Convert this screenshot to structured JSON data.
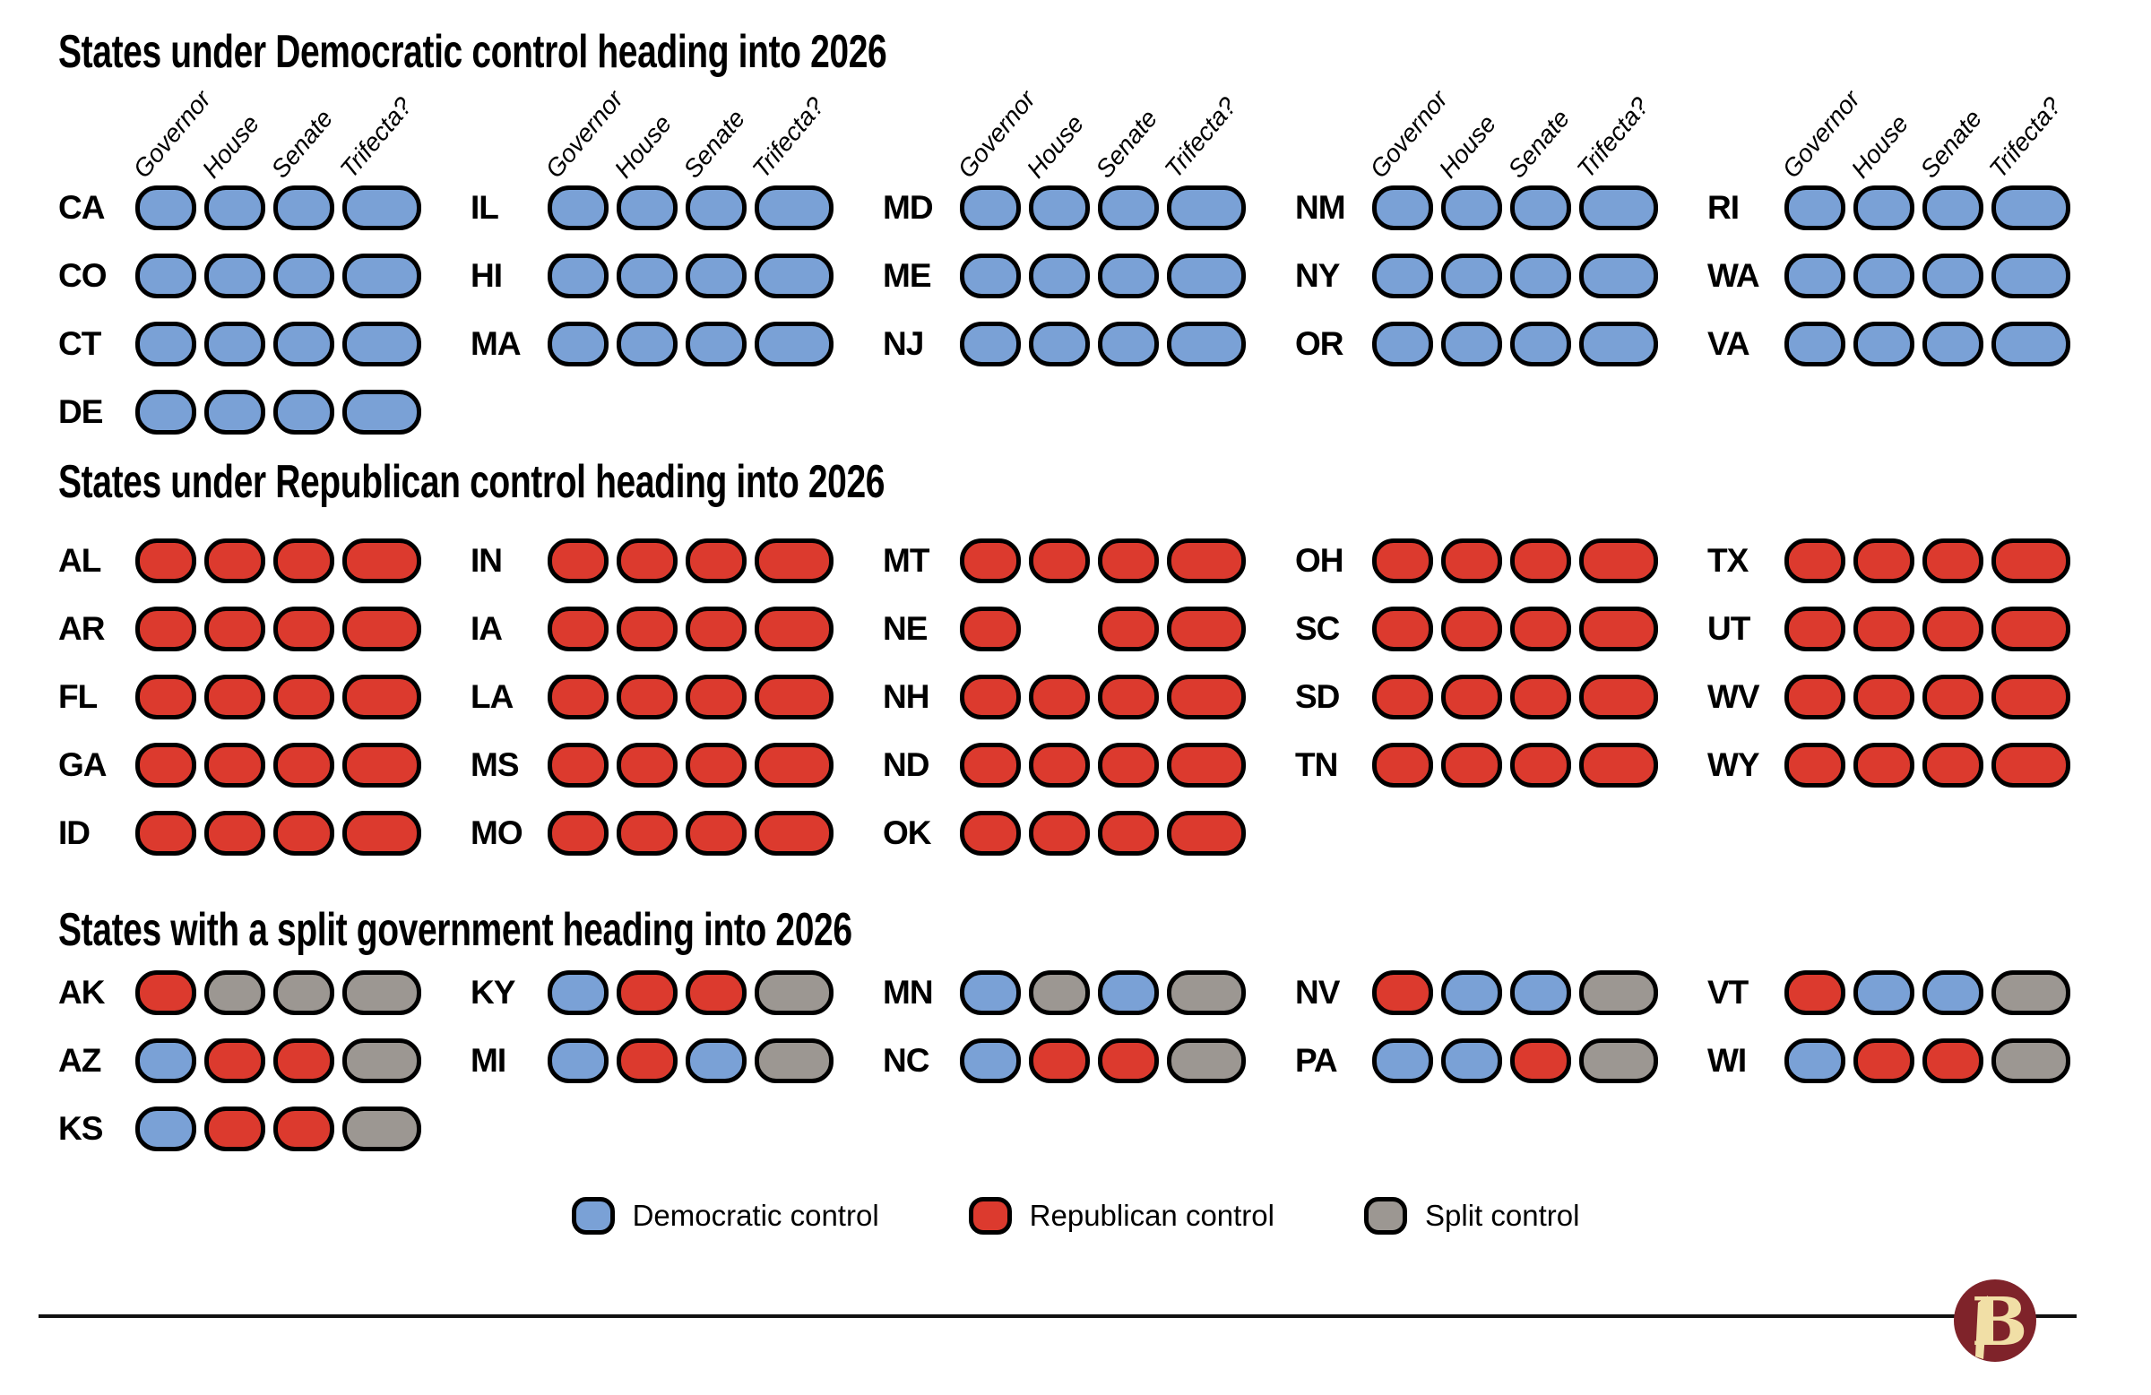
{
  "colors": {
    "dem": "#7AA1D6",
    "rep": "#DC3A2E",
    "split": "#9C9792",
    "outline": "#000000",
    "maroon": "#7F232A",
    "cream": "#F1DFA6"
  },
  "chart_data": {
    "type": "table",
    "column_headers": [
      "Governor",
      "House",
      "Senate",
      "Trifecta?"
    ],
    "sections": [
      {
        "title": "States under Democratic control heading into 2026",
        "show_column_headers": true,
        "columns": [
          [
            {
              "state": "CA",
              "control": [
                "D",
                "D",
                "D",
                "D"
              ]
            },
            {
              "state": "CO",
              "control": [
                "D",
                "D",
                "D",
                "D"
              ]
            },
            {
              "state": "CT",
              "control": [
                "D",
                "D",
                "D",
                "D"
              ]
            },
            {
              "state": "DE",
              "control": [
                "D",
                "D",
                "D",
                "D"
              ]
            }
          ],
          [
            {
              "state": "IL",
              "control": [
                "D",
                "D",
                "D",
                "D"
              ]
            },
            {
              "state": "HI",
              "control": [
                "D",
                "D",
                "D",
                "D"
              ]
            },
            {
              "state": "MA",
              "control": [
                "D",
                "D",
                "D",
                "D"
              ]
            }
          ],
          [
            {
              "state": "MD",
              "control": [
                "D",
                "D",
                "D",
                "D"
              ]
            },
            {
              "state": "ME",
              "control": [
                "D",
                "D",
                "D",
                "D"
              ]
            },
            {
              "state": "NJ",
              "control": [
                "D",
                "D",
                "D",
                "D"
              ]
            }
          ],
          [
            {
              "state": "NM",
              "control": [
                "D",
                "D",
                "D",
                "D"
              ]
            },
            {
              "state": "NY",
              "control": [
                "D",
                "D",
                "D",
                "D"
              ]
            },
            {
              "state": "OR",
              "control": [
                "D",
                "D",
                "D",
                "D"
              ]
            }
          ],
          [
            {
              "state": "RI",
              "control": [
                "D",
                "D",
                "D",
                "D"
              ]
            },
            {
              "state": "WA",
              "control": [
                "D",
                "D",
                "D",
                "D"
              ]
            },
            {
              "state": "VA",
              "control": [
                "D",
                "D",
                "D",
                "D"
              ]
            }
          ]
        ]
      },
      {
        "title": "States under Republican control heading into 2026",
        "show_column_headers": false,
        "columns": [
          [
            {
              "state": "AL",
              "control": [
                "R",
                "R",
                "R",
                "R"
              ]
            },
            {
              "state": "AR",
              "control": [
                "R",
                "R",
                "R",
                "R"
              ]
            },
            {
              "state": "FL",
              "control": [
                "R",
                "R",
                "R",
                "R"
              ]
            },
            {
              "state": "GA",
              "control": [
                "R",
                "R",
                "R",
                "R"
              ]
            },
            {
              "state": "ID",
              "control": [
                "R",
                "R",
                "R",
                "R"
              ]
            }
          ],
          [
            {
              "state": "IN",
              "control": [
                "R",
                "R",
                "R",
                "R"
              ]
            },
            {
              "state": "IA",
              "control": [
                "R",
                "R",
                "R",
                "R"
              ]
            },
            {
              "state": "LA",
              "control": [
                "R",
                "R",
                "R",
                "R"
              ]
            },
            {
              "state": "MS",
              "control": [
                "R",
                "R",
                "R",
                "R"
              ]
            },
            {
              "state": "MO",
              "control": [
                "R",
                "R",
                "R",
                "R"
              ]
            }
          ],
          [
            {
              "state": "MT",
              "control": [
                "R",
                "R",
                "R",
                "R"
              ]
            },
            {
              "state": "NE",
              "control": [
                "R",
                null,
                "R",
                "R"
              ]
            },
            {
              "state": "NH",
              "control": [
                "R",
                "R",
                "R",
                "R"
              ]
            },
            {
              "state": "ND",
              "control": [
                "R",
                "R",
                "R",
                "R"
              ]
            },
            {
              "state": "OK",
              "control": [
                "R",
                "R",
                "R",
                "R"
              ]
            }
          ],
          [
            {
              "state": "OH",
              "control": [
                "R",
                "R",
                "R",
                "R"
              ]
            },
            {
              "state": "SC",
              "control": [
                "R",
                "R",
                "R",
                "R"
              ]
            },
            {
              "state": "SD",
              "control": [
                "R",
                "R",
                "R",
                "R"
              ]
            },
            {
              "state": "TN",
              "control": [
                "R",
                "R",
                "R",
                "R"
              ]
            }
          ],
          [
            {
              "state": "TX",
              "control": [
                "R",
                "R",
                "R",
                "R"
              ]
            },
            {
              "state": "UT",
              "control": [
                "R",
                "R",
                "R",
                "R"
              ]
            },
            {
              "state": "WV",
              "control": [
                "R",
                "R",
                "R",
                "R"
              ]
            },
            {
              "state": "WY",
              "control": [
                "R",
                "R",
                "R",
                "R"
              ]
            }
          ]
        ]
      },
      {
        "title": "States with a split government heading into 2026",
        "show_column_headers": false,
        "columns": [
          [
            {
              "state": "AK",
              "control": [
                "R",
                "S",
                "S",
                "S"
              ]
            },
            {
              "state": "AZ",
              "control": [
                "D",
                "R",
                "R",
                "S"
              ]
            },
            {
              "state": "KS",
              "control": [
                "D",
                "R",
                "R",
                "S"
              ]
            }
          ],
          [
            {
              "state": "KY",
              "control": [
                "D",
                "R",
                "R",
                "S"
              ]
            },
            {
              "state": "MI",
              "control": [
                "D",
                "R",
                "D",
                "S"
              ]
            }
          ],
          [
            {
              "state": "MN",
              "control": [
                "D",
                "S",
                "D",
                "S"
              ]
            },
            {
              "state": "NC",
              "control": [
                "D",
                "R",
                "R",
                "S"
              ]
            }
          ],
          [
            {
              "state": "NV",
              "control": [
                "R",
                "D",
                "D",
                "S"
              ]
            },
            {
              "state": "PA",
              "control": [
                "D",
                "D",
                "R",
                "S"
              ]
            }
          ],
          [
            {
              "state": "VT",
              "control": [
                "R",
                "D",
                "D",
                "S"
              ]
            },
            {
              "state": "WI",
              "control": [
                "D",
                "R",
                "R",
                "S"
              ]
            }
          ]
        ]
      }
    ]
  },
  "legend": {
    "items": [
      {
        "key": "D",
        "label": "Democratic control"
      },
      {
        "key": "R",
        "label": "Republican control"
      },
      {
        "key": "S",
        "label": "Split control"
      }
    ]
  },
  "footer": {
    "logo_letter": "B"
  }
}
